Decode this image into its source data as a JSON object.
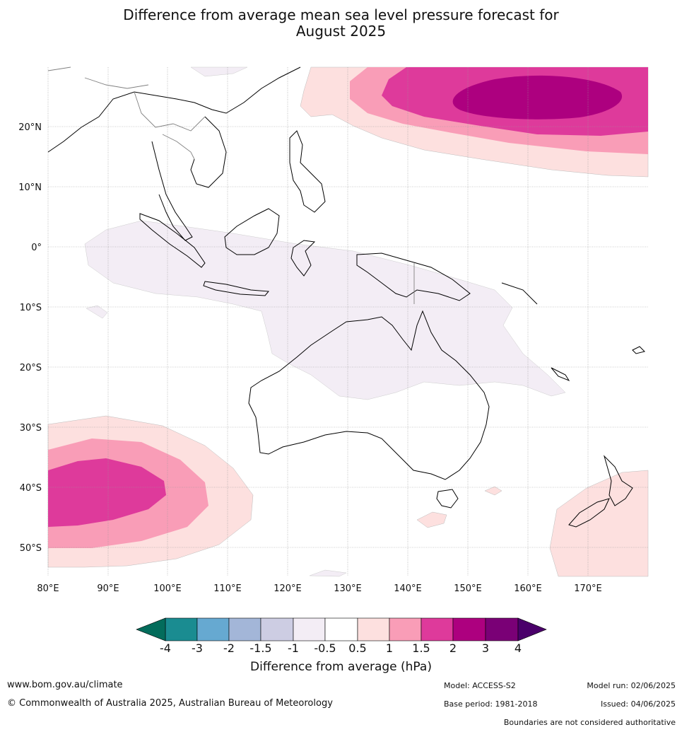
{
  "title": {
    "line1": "Difference from average mean sea level pressure forecast for",
    "line2": "August 2025"
  },
  "map": {
    "lon_range": [
      80,
      180
    ],
    "lat_range": [
      -55,
      30
    ],
    "lon_ticks": [
      "80°E",
      "90°E",
      "100°E",
      "110°E",
      "120°E",
      "130°E",
      "140°E",
      "150°E",
      "160°E",
      "170°E"
    ],
    "lat_ticks": [
      "20°N",
      "10°N",
      "0°",
      "10°S",
      "20°S",
      "30°S",
      "40°S",
      "50°S"
    ],
    "grid": true
  },
  "colorbar": {
    "ticks": [
      "-4",
      "-3",
      "-2",
      "-1.5",
      "-1",
      "-0.5",
      "0.5",
      "1",
      "1.5",
      "2",
      "3",
      "4"
    ],
    "colors": [
      "#1a8c91",
      "#66a9d1",
      "#a3b6d8",
      "#cdcde3",
      "#f3edf5",
      "#ffffff",
      "#fde0df",
      "#f99db7",
      "#de3a9b",
      "#ad007f",
      "#7a0076"
    ],
    "under_color": "#036c5b",
    "over_color": "#4a006a",
    "label": "Difference from average (hPa)"
  },
  "footer": {
    "website": "www.bom.gov.au/climate",
    "copyright": "© Commonwealth of Australia 2025, Australian Bureau of Meteorology",
    "model": "Model: ACCESS-S2",
    "base_period": "Base period: 1981-2018",
    "model_run": "Model run: 02/06/2025",
    "issued": "Issued: 04/06/2025",
    "disclaimer": "Boundaries are not considered authoritative"
  }
}
